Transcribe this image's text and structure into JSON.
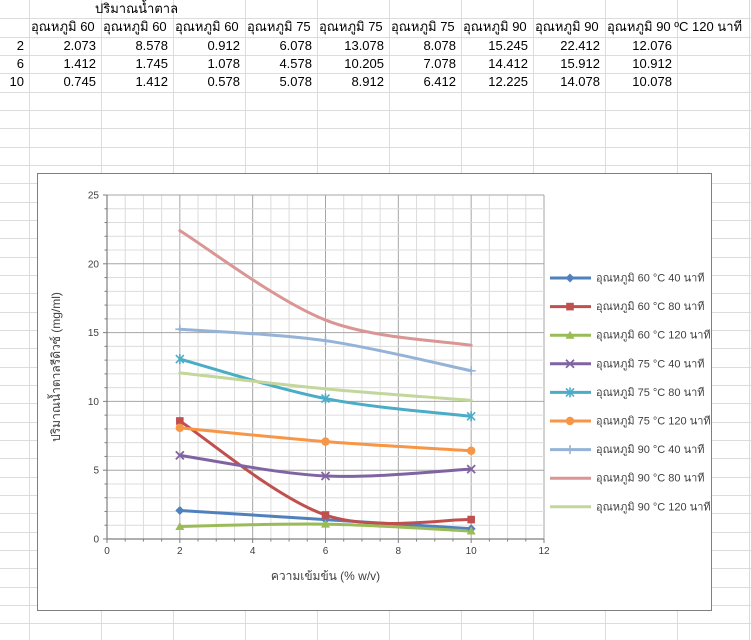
{
  "sheet": {
    "title_cell": "ปริมาณน้ำตาล",
    "headers": [
      "อุณหภูมิ 60",
      "อุณหภูมิ 60",
      "อุณหภูมิ 60",
      "อุณหภูมิ 75",
      "อุณหภูมิ 75",
      "อุณหภูมิ 75",
      "อุณหภูมิ 90",
      "อุณหภูมิ 90",
      "อุณหภูมิ 90 ºC  120 นาที"
    ],
    "row_labels": [
      "2",
      "6",
      "10"
    ],
    "rows": [
      [
        "2.073",
        "8.578",
        "0.912",
        "6.078",
        "13.078",
        "8.078",
        "15.245",
        "22.412",
        "12.076"
      ],
      [
        "1.412",
        "1.745",
        "1.078",
        "4.578",
        "10.205",
        "7.078",
        "14.412",
        "15.912",
        "10.912"
      ],
      [
        "0.745",
        "1.412",
        "0.578",
        "5.078",
        "8.912",
        "6.412",
        "12.225",
        "14.078",
        "10.078"
      ]
    ]
  },
  "chart_data": {
    "type": "line",
    "smooth": true,
    "x": [
      2,
      6,
      10
    ],
    "xlabel": "ความเข้มข้น (% w/v)",
    "ylabel": "ปริมาณน้ำตาลรีดิวซ์ (mg/ml)",
    "xlim": [
      0,
      12
    ],
    "ylim": [
      0,
      25
    ],
    "x_ticks": [
      0,
      2,
      4,
      6,
      8,
      10,
      12
    ],
    "y_ticks": [
      0,
      5,
      10,
      15,
      20,
      25
    ],
    "x_minor_unit": 0.5,
    "y_minor_unit": 1,
    "grid": "both-major-and-minor",
    "legend_position": "right",
    "series": [
      {
        "name": "อุณหภูมิ 60 °C  40 นาที",
        "color": "#4F81BD",
        "marker": "diamond",
        "values": [
          2.073,
          1.412,
          0.745
        ]
      },
      {
        "name": "อุณหภูมิ 60 °C  80 นาที",
        "color": "#C0504D",
        "marker": "square",
        "values": [
          8.578,
          1.745,
          1.412
        ]
      },
      {
        "name": "อุณหภูมิ 60 °C  120 นาที",
        "color": "#9BBB59",
        "marker": "triangle",
        "values": [
          0.912,
          1.078,
          0.578
        ]
      },
      {
        "name": "อุณหภูมิ 75 °C  40 นาที",
        "color": "#8064A2",
        "marker": "x",
        "values": [
          6.078,
          4.578,
          5.078
        ]
      },
      {
        "name": "อุณหภูมิ 75 °C  80 นาที",
        "color": "#4BACC6",
        "marker": "star",
        "values": [
          13.078,
          10.205,
          8.912
        ]
      },
      {
        "name": "อุณหภูมิ 75 °C  120 นาที",
        "color": "#F79646",
        "marker": "circle",
        "values": [
          8.078,
          7.078,
          6.412
        ]
      },
      {
        "name": "อุณหภูมิ 90 °C  40 นาที",
        "color": "#95B3D7",
        "marker": "plus",
        "values": [
          15.245,
          14.412,
          12.225
        ]
      },
      {
        "name": "อุณหภูมิ 90 °C  80 นาที",
        "color": "#D99694",
        "marker": "none",
        "values": [
          22.412,
          15.912,
          14.078
        ]
      },
      {
        "name": "อุณหภูมิ 90 °C  120 นาที",
        "color": "#C3D69B",
        "marker": "none",
        "values": [
          12.076,
          10.912,
          10.078
        ]
      }
    ],
    "colors": {
      "minor_grid": "#dcdcdc",
      "major_grid": "#a6a6a6",
      "axis": "#7f7f7f",
      "tick_label": "#3f3f3f"
    }
  }
}
